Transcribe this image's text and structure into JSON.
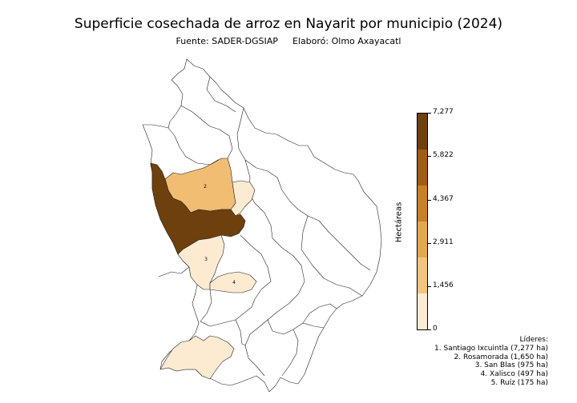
{
  "title": "Superficie cosechada de arroz en Nayarit por municipio (2024)",
  "source": "Fuente: SADER-DGSIAP",
  "author": "Elaboró: Olmo Axayacatl",
  "colorbar": {
    "label": "Hectáreas",
    "ticks": [
      "7,277",
      "5,822",
      "4,367",
      "2,911",
      "1,456",
      "0"
    ],
    "min": 0,
    "max": 7277,
    "colors": [
      "#fdebd1",
      "#f3c47e",
      "#e3a94f",
      "#c98127",
      "#a15c15",
      "#6e400e"
    ]
  },
  "leaders": {
    "title": "Líderes:",
    "items": [
      "1. Santiago Ixcuintla (7,277 ha)",
      "2. Rosamorada (1,650 ha)",
      "3. San Blas (975 ha)",
      "4. Xalisco (497 ha)",
      "5. Ruíz (175 ha)"
    ]
  },
  "municipalities": [
    {
      "rank": "1",
      "name": "Santiago Ixcuintla",
      "hectares": 7277,
      "color": "#6e400e"
    },
    {
      "rank": "2",
      "name": "Rosamorada",
      "hectares": 1650,
      "color": "#f0bd72"
    },
    {
      "rank": "3",
      "name": "San Blas",
      "hectares": 975,
      "color": "#fdebd1"
    },
    {
      "rank": "4",
      "name": "Xalisco",
      "hectares": 497,
      "color": "#fdebd1"
    },
    {
      "rank": "5",
      "name": "Ruíz",
      "hectares": 175,
      "color": "#fdebd1"
    }
  ]
}
